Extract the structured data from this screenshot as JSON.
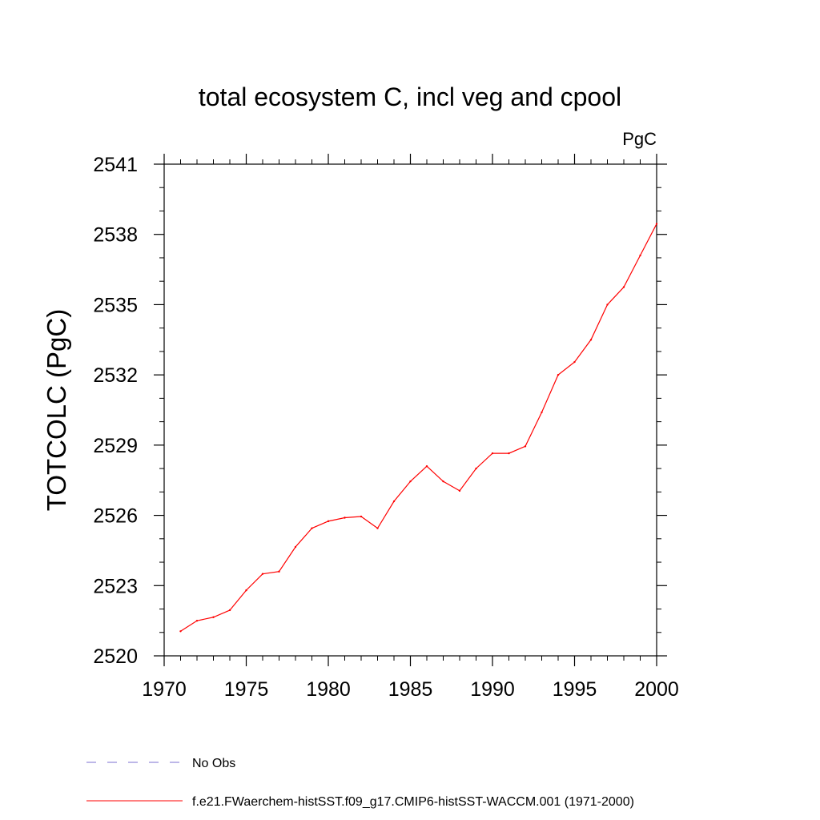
{
  "chart_data": {
    "type": "line",
    "title": "total ecosystem C, incl veg and cpool",
    "units": "PgC",
    "xlabel": "",
    "ylabel": "TOTCOLC  (PgC)",
    "xlim": [
      1970,
      2000
    ],
    "ylim": [
      2520,
      2541
    ],
    "xticks": [
      "1970",
      "1975",
      "1980",
      "1985",
      "1990",
      "1995",
      "2000"
    ],
    "yticks": [
      "2520",
      "2523",
      "2526",
      "2529",
      "2532",
      "2535",
      "2538",
      "2541"
    ],
    "grid": false,
    "legend_position": "bottom",
    "series": [
      {
        "name": "No Obs",
        "color": "#7b6fd0",
        "style": "dashed",
        "x": [],
        "y": []
      },
      {
        "name": "f.e21.FWaerchem-histSST.f09_g17.CMIP6-histSST-WACCM.001 (1971-2000)",
        "color": "#ff0000",
        "style": "solid",
        "x": [
          1971,
          1972,
          1973,
          1974,
          1975,
          1976,
          1977,
          1978,
          1979,
          1980,
          1981,
          1982,
          1983,
          1984,
          1985,
          1986,
          1987,
          1988,
          1989,
          1990,
          1991,
          1992,
          1993,
          1994,
          1995,
          1996,
          1997,
          1998,
          1999,
          2000
        ],
        "y": [
          2521.05,
          2521.5,
          2521.65,
          2521.95,
          2522.8,
          2523.5,
          2523.6,
          2524.65,
          2525.45,
          2525.75,
          2525.9,
          2525.95,
          2525.45,
          2526.6,
          2527.45,
          2528.1,
          2527.45,
          2527.05,
          2528.0,
          2528.65,
          2528.65,
          2528.95,
          2530.4,
          2532.0,
          2532.55,
          2533.5,
          2535.0,
          2535.75,
          2537.1,
          2538.45
        ]
      }
    ]
  }
}
